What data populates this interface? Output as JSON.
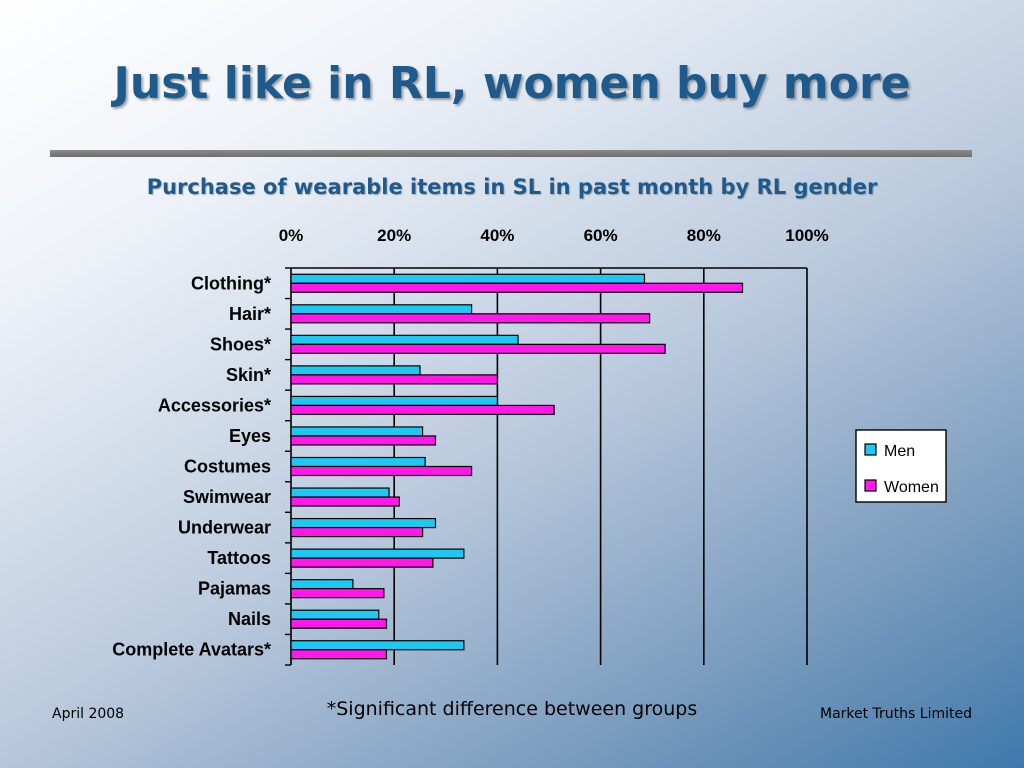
{
  "slide": {
    "title": "Just like in RL, women buy more",
    "footnote": "*Significant difference between groups",
    "footer_left": "April 2008",
    "footer_right": "Market Truths Limited"
  },
  "chart_data": {
    "type": "bar",
    "orientation": "horizontal",
    "title": "Purchase of wearable items in SL in past month by RL gender",
    "categories": [
      "Clothing*",
      "Hair*",
      "Shoes*",
      "Skin*",
      "Accessories*",
      "Eyes",
      "Costumes",
      "Swimwear",
      "Underwear",
      "Tattoos",
      "Pajamas",
      "Nails",
      "Complete Avatars*"
    ],
    "series": [
      {
        "name": "Men",
        "color": "#1ec8f0",
        "values": [
          68.5,
          35,
          44,
          25,
          40,
          25.5,
          26,
          19,
          28,
          33.5,
          12,
          17,
          33.5
        ]
      },
      {
        "name": "Women",
        "color": "#ff18e8",
        "values": [
          87.5,
          69.5,
          72.5,
          40,
          51,
          28,
          35,
          21,
          25.5,
          27.5,
          18,
          18.5,
          18.5
        ]
      }
    ],
    "xlim": [
      0,
      100
    ],
    "x_ticks": [
      "0%",
      "20%",
      "40%",
      "60%",
      "80%",
      "100%"
    ],
    "grid": true,
    "legend": "right"
  }
}
